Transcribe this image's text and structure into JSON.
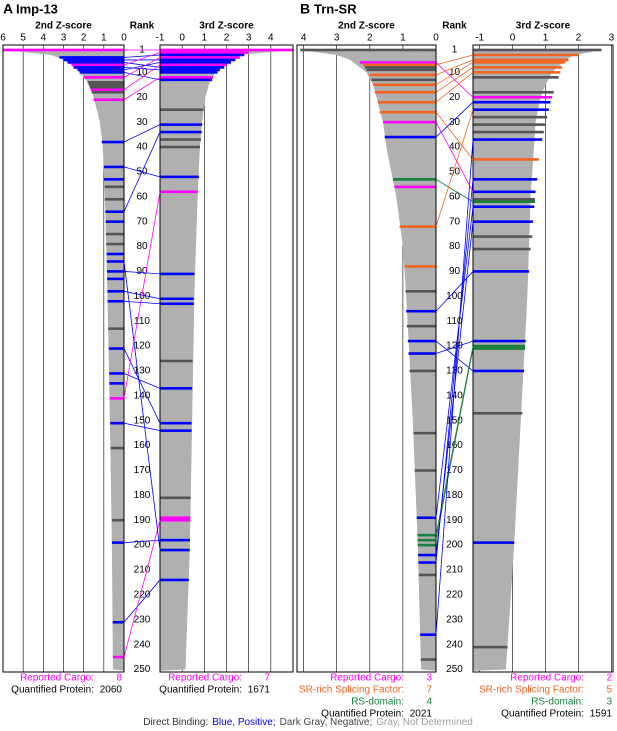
{
  "chart_data": [
    {
      "type": "rank-bar",
      "label": "A",
      "title": "Imp-13",
      "rank_title": "Rank",
      "ylim": [
        -1,
        251
      ],
      "rank_ticks": [
        1,
        10,
        20,
        30,
        40,
        50,
        60,
        70,
        80,
        90,
        100,
        110,
        120,
        130,
        140,
        150,
        160,
        170,
        180,
        190,
        200,
        210,
        220,
        230,
        240,
        250
      ],
      "bar_color": "#b0b0b0",
      "screens": [
        {
          "title": "2nd Z-score",
          "xlim": [
            6,
            0
          ],
          "xticks": [
            6,
            5,
            4,
            3,
            2,
            1,
            0
          ],
          "ranks": [
            1,
            3,
            5,
            7,
            10,
            15,
            20,
            30,
            40,
            60,
            80,
            100,
            150,
            200,
            250
          ],
          "values": [
            6.0,
            3.6,
            3.0,
            2.6,
            2.2,
            1.7,
            1.5,
            1.2,
            1.05,
            0.95,
            0.88,
            0.82,
            0.7,
            0.6,
            0.55
          ],
          "highlight_ranks": [
            1,
            4,
            5,
            6,
            7,
            8,
            9,
            10,
            12,
            14,
            15,
            16,
            17,
            18,
            21,
            38,
            48,
            53,
            56,
            61,
            66,
            70,
            75,
            79,
            83,
            86,
            90,
            93,
            98,
            102,
            113,
            121,
            131,
            135,
            141,
            151,
            161,
            190,
            199,
            231,
            245
          ],
          "highlight_values": [
            6.0,
            3.2,
            3.0,
            2.8,
            2.6,
            2.5,
            2.3,
            2.2,
            2.0,
            1.8,
            1.75,
            1.7,
            1.65,
            1.6,
            1.5,
            1.1,
            1.0,
            1.0,
            0.95,
            0.95,
            0.92,
            0.9,
            0.9,
            0.88,
            0.86,
            0.85,
            0.84,
            0.83,
            0.82,
            0.81,
            0.78,
            0.75,
            0.73,
            0.72,
            0.7,
            0.68,
            0.66,
            0.6,
            0.6,
            0.56,
            0.55
          ],
          "highlight_colors": [
            "#ff00ff",
            "#0000ff",
            "#0000ff",
            "#0000ff",
            "#ff00ff",
            "#0000ff",
            "#0000ff",
            "#0000ff",
            "#ff00ff",
            "#555555",
            "#555555",
            "#555555",
            "#ff00ff",
            "#555555",
            "#ff00ff",
            "#0000ff",
            "#0000ff",
            "#0000ff",
            "#555555",
            "#555555",
            "#0000ff",
            "#0000ff",
            "#555555",
            "#555555",
            "#0000ff",
            "#0000ff",
            "#0000ff",
            "#0000ff",
            "#0000ff",
            "#0000ff",
            "#555555",
            "#0000ff",
            "#0000ff",
            "#0000ff",
            "#ff00ff",
            "#0000ff",
            "#555555",
            "#555555",
            "#0000ff",
            "#0000ff",
            "#ff00ff"
          ],
          "counts": [
            {
              "label": "Reported Cargo:",
              "value": 8,
              "color": "#ff00ff"
            },
            {
              "label": "Quantified Protein:",
              "value": 2060,
              "color": "#000000"
            }
          ]
        },
        {
          "title": "3rd Z-score",
          "xlim": [
            -1,
            5
          ],
          "xticks": [
            -1,
            0,
            1,
            2,
            3,
            4
          ],
          "ranks": [
            1,
            3,
            5,
            7,
            10,
            15,
            20,
            30,
            40,
            60,
            80,
            100,
            150,
            200,
            250
          ],
          "values": [
            5.0,
            2.6,
            2.2,
            1.9,
            1.5,
            1.2,
            1.05,
            0.9,
            0.8,
            0.7,
            0.62,
            0.55,
            0.45,
            0.35,
            0.15
          ],
          "highlight_ranks": [
            1,
            2,
            3,
            4,
            5,
            6,
            7,
            8,
            9,
            10,
            12,
            13,
            25,
            31,
            34,
            37,
            40,
            52,
            58,
            91,
            101,
            103,
            126,
            137,
            151,
            154,
            181,
            189,
            190,
            198,
            202,
            214
          ],
          "highlight_values": [
            5.0,
            3.0,
            2.8,
            2.6,
            2.4,
            2.2,
            2.0,
            1.9,
            1.7,
            1.6,
            1.4,
            1.35,
            0.95,
            0.9,
            0.88,
            0.85,
            0.8,
            0.75,
            0.7,
            0.55,
            0.52,
            0.52,
            0.47,
            0.45,
            0.42,
            0.42,
            0.38,
            0.36,
            0.36,
            0.35,
            0.34,
            0.3
          ],
          "highlight_colors": [
            "#ff00ff",
            "#ff00ff",
            "#0000ff",
            "#ff00ff",
            "#0000ff",
            "#0000ff",
            "#ff00ff",
            "#0000ff",
            "#0000ff",
            "#0000ff",
            "#ff00ff",
            "#0000ff",
            "#555555",
            "#0000ff",
            "#0000ff",
            "#555555",
            "#555555",
            "#0000ff",
            "#ff00ff",
            "#0000ff",
            "#0000ff",
            "#0000ff",
            "#555555",
            "#0000ff",
            "#0000ff",
            "#0000ff",
            "#555555",
            "#ff00ff",
            "#ff00ff",
            "#0000ff",
            "#0000ff",
            "#0000ff"
          ],
          "counts": [
            {
              "label": "Reported Cargo:",
              "value": 7,
              "color": "#ff00ff"
            },
            {
              "label": "Quantified Protein:",
              "value": 1671,
              "color": "#000000"
            }
          ]
        }
      ],
      "link_from": [
        1,
        4,
        5,
        6,
        8,
        9,
        10,
        7,
        12,
        17,
        21,
        38,
        48,
        66,
        90,
        98,
        102,
        121,
        131,
        141,
        151,
        199,
        231,
        245,
        86
      ],
      "link_to": [
        1,
        3,
        5,
        8,
        9,
        6,
        13,
        2,
        4,
        7,
        12,
        31,
        52,
        34,
        91,
        101,
        103,
        151,
        137,
        58,
        154,
        198,
        214,
        190,
        202
      ],
      "link_colors": [
        "#ff00ff",
        "#0000ff",
        "#0000ff",
        "#0000ff",
        "#0000ff",
        "#0000ff",
        "#0000ff",
        "#ff00ff",
        "#ff00ff",
        "#ff00ff",
        "#ff00ff",
        "#0000ff",
        "#0000ff",
        "#0000ff",
        "#0000ff",
        "#0000ff",
        "#0000ff",
        "#0000ff",
        "#0000ff",
        "#ff00ff",
        "#0000ff",
        "#0000ff",
        "#0000ff",
        "#ff00ff",
        "#0000ff"
      ]
    },
    {
      "type": "rank-bar",
      "label": "B",
      "title": "Trn-SR",
      "rank_title": "Rank",
      "ylim": [
        -1,
        251
      ],
      "rank_ticks": [
        1,
        10,
        20,
        30,
        40,
        50,
        60,
        70,
        80,
        90,
        100,
        110,
        120,
        130,
        140,
        150,
        160,
        170,
        180,
        190,
        200,
        210,
        220,
        230,
        240,
        250
      ],
      "bar_color": "#b0b0b0",
      "screens": [
        {
          "title": "2nd Z-score",
          "xlim": [
            4.2,
            0
          ],
          "xticks": [
            4,
            3,
            2,
            1,
            0
          ],
          "ranks": [
            1,
            3,
            5,
            7,
            10,
            15,
            20,
            30,
            40,
            60,
            80,
            100,
            150,
            200,
            250
          ],
          "values": [
            4.1,
            3.0,
            2.6,
            2.4,
            2.1,
            1.9,
            1.8,
            1.6,
            1.5,
            1.2,
            1.0,
            0.9,
            0.7,
            0.55,
            0.45
          ],
          "highlight_ranks": [
            1,
            6,
            7,
            8,
            9,
            11,
            13,
            15,
            18,
            22,
            26,
            30,
            36,
            53,
            56,
            72,
            88,
            98,
            106,
            112,
            118,
            123,
            130,
            155,
            170,
            189,
            196,
            198,
            200,
            204,
            207,
            212,
            236,
            246
          ],
          "highlight_values": [
            4.1,
            2.3,
            2.2,
            2.15,
            2.1,
            2.0,
            1.95,
            1.9,
            1.85,
            1.75,
            1.7,
            1.6,
            1.55,
            1.3,
            1.25,
            1.1,
            0.95,
            0.92,
            0.9,
            0.88,
            0.85,
            0.83,
            0.8,
            0.68,
            0.64,
            0.58,
            0.56,
            0.56,
            0.55,
            0.54,
            0.53,
            0.52,
            0.48,
            0.46
          ],
          "highlight_colors": [
            "#555555",
            "#ff00ff",
            "#f26522",
            "#555555",
            "#555555",
            "#f26522",
            "#555555",
            "#f26522",
            "#f26522",
            "#f26522",
            "#f26522",
            "#ff00ff",
            "#0000ff",
            "#1a7f3c",
            "#ff00ff",
            "#f26522",
            "#f26522",
            "#555555",
            "#0000ff",
            "#555555",
            "#0000ff",
            "#0000ff",
            "#555555",
            "#555555",
            "#555555",
            "#0000ff",
            "#1a7f3c",
            "#1a7f3c",
            "#1a7f3c",
            "#0000ff",
            "#0000ff",
            "#555555",
            "#0000ff",
            "#555555"
          ],
          "counts": [
            {
              "label": "Reported Cargo:",
              "value": 3,
              "color": "#ff00ff"
            },
            {
              "label": "SR-rich Splicing Factor:",
              "value": 7,
              "color": "#f26522"
            },
            {
              "label": "RS-domain:",
              "value": 4,
              "color": "#1a7f3c"
            },
            {
              "label": "Quantified Protein:",
              "value": 2021,
              "color": "#000000"
            }
          ]
        },
        {
          "title": "3rd Z-score",
          "xlim": [
            -1.2,
            3.05
          ],
          "xticks": [
            -1,
            0,
            1,
            2,
            3
          ],
          "ranks": [
            1,
            3,
            5,
            7,
            10,
            15,
            20,
            30,
            40,
            60,
            80,
            100,
            150,
            200,
            250
          ],
          "values": [
            2.7,
            1.9,
            1.6,
            1.45,
            1.2,
            1.0,
            0.85,
            0.7,
            0.65,
            0.55,
            0.5,
            0.45,
            0.25,
            0.05,
            -0.2
          ],
          "highlight_ranks": [
            1,
            3,
            5,
            6,
            8,
            10,
            12,
            18,
            20,
            22,
            25,
            28,
            31,
            34,
            37,
            45,
            53,
            58,
            61,
            62,
            64,
            70,
            76,
            81,
            90,
            118,
            120,
            121,
            130,
            147,
            199,
            241
          ],
          "highlight_values": [
            2.7,
            2.0,
            1.7,
            1.6,
            1.5,
            1.45,
            1.4,
            1.25,
            1.2,
            1.15,
            1.1,
            1.05,
            1.0,
            0.95,
            0.9,
            0.8,
            0.75,
            0.7,
            0.68,
            0.68,
            0.66,
            0.62,
            0.6,
            0.55,
            0.5,
            0.4,
            0.38,
            0.38,
            0.35,
            0.3,
            0.05,
            -0.15
          ],
          "highlight_colors": [
            "#555555",
            "#f26522",
            "#f26522",
            "#f26522",
            "#f26522",
            "#f26522",
            "#555555",
            "#555555",
            "#ff00ff",
            "#0000ff",
            "#0000ff",
            "#555555",
            "#555555",
            "#555555",
            "#0000ff",
            "#f26522",
            "#0000ff",
            "#0000ff",
            "#555555",
            "#1a7f3c",
            "#0000ff",
            "#0000ff",
            "#555555",
            "#555555",
            "#0000ff",
            "#0000ff",
            "#1a7f3c",
            "#1a7f3c",
            "#0000ff",
            "#555555",
            "#0000ff",
            "#555555"
          ],
          "counts": [
            {
              "label": "Reported Cargo:",
              "value": 2,
              "color": "#ff00ff"
            },
            {
              "label": "SR-rich Splicing Factor:",
              "value": 5,
              "color": "#f26522"
            },
            {
              "label": "RS-domain:",
              "value": 3,
              "color": "#1a7f3c"
            },
            {
              "label": "Quantified Protein:",
              "value": 1591,
              "color": "#000000"
            }
          ]
        }
      ],
      "link_from": [
        6,
        7,
        11,
        15,
        18,
        22,
        26,
        36,
        53,
        106,
        118,
        123,
        189,
        196,
        198,
        204,
        207,
        236,
        30,
        72
      ],
      "link_to": [
        20,
        3,
        5,
        6,
        8,
        10,
        45,
        22,
        62,
        90,
        130,
        118,
        64,
        120,
        121,
        70,
        53,
        37,
        58,
        25
      ],
      "link_colors": [
        "#ff00ff",
        "#f26522",
        "#f26522",
        "#f26522",
        "#f26522",
        "#f26522",
        "#f26522",
        "#0000ff",
        "#1a7f3c",
        "#0000ff",
        "#0000ff",
        "#0000ff",
        "#0000ff",
        "#1a7f3c",
        "#1a7f3c",
        "#0000ff",
        "#0000ff",
        "#0000ff",
        "#ff00ff",
        "#f26522"
      ]
    }
  ],
  "caption": [
    {
      "text": "Direct Binding:",
      "color": "#333333"
    },
    {
      "text": "Blue, Positive;",
      "color": "#0000ee"
    },
    {
      "text": "Dark Gray, Negative;",
      "color": "#444444"
    },
    {
      "text": "Gray, Not Determined",
      "color": "#a0a0a0"
    }
  ]
}
